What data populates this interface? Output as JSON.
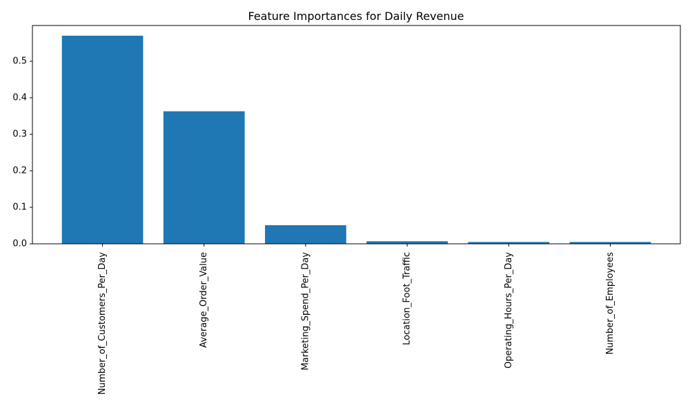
{
  "chart_data": {
    "type": "bar",
    "title": "Feature Importances for Daily Revenue",
    "xlabel": "",
    "ylabel": "",
    "categories": [
      "Number_of_Customers_Per_Day",
      "Average_Order_Value",
      "Marketing_Spend_Per_Day",
      "Location_Foot_Traffic",
      "Operating_Hours_Per_Day",
      "Number_of_Employees"
    ],
    "values": [
      0.57,
      0.363,
      0.051,
      0.007,
      0.005,
      0.005
    ],
    "ylim": [
      0,
      0.598
    ],
    "yticks": [
      "0.0",
      "0.1",
      "0.2",
      "0.3",
      "0.4",
      "0.5"
    ],
    "bar_color": "#1f77b4",
    "grid": false,
    "legend": "none"
  }
}
